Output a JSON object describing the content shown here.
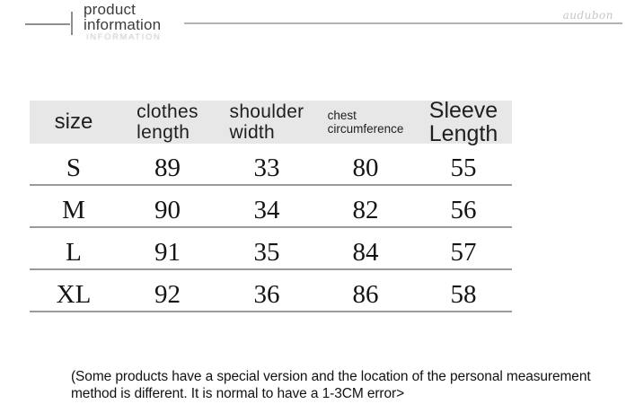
{
  "header": {
    "title_line1": "product",
    "title_line2": "information",
    "title_reflection": "INFORMATION",
    "watermark": "audubon"
  },
  "size_chart": {
    "columns": [
      {
        "line1": "size",
        "line2": ""
      },
      {
        "line1": "clothes",
        "line2": "length"
      },
      {
        "line1": "shoulder",
        "line2": "width"
      },
      {
        "line1": "chest",
        "line2": "circumference"
      },
      {
        "line1": "Sleeve",
        "line2": "Length"
      }
    ],
    "rows": [
      {
        "cells": [
          "S",
          "89",
          "33",
          "80",
          "55"
        ]
      },
      {
        "cells": [
          "M",
          "90",
          "34",
          "82",
          "56"
        ]
      },
      {
        "cells": [
          "L",
          "91",
          "35",
          "84",
          "57"
        ]
      },
      {
        "cells": [
          "XL",
          "92",
          "36",
          "86",
          "58"
        ]
      }
    ]
  },
  "footnote": "(Some products have a special version and the location of the personal measurement method is different. It is normal to have a 1-3CM error>",
  "chart_data": {
    "type": "table",
    "title": "product information",
    "columns": [
      "size",
      "clothes length",
      "shoulder width",
      "chest circumference",
      "Sleeve Length"
    ],
    "rows": [
      [
        "S",
        89,
        33,
        80,
        55
      ],
      [
        "M",
        90,
        34,
        82,
        56
      ],
      [
        "L",
        91,
        35,
        84,
        57
      ],
      [
        "XL",
        92,
        36,
        86,
        58
      ]
    ],
    "note": "(Some products have a special version and the location of the personal measurement method is different. It is normal to have a 1-3CM error>",
    "units": "CM"
  },
  "colors": {
    "header_band": "#e7e7e7",
    "row_divider": "#9b9b9b",
    "text": "#1d1d1d",
    "muted_gray": "#c6c6c6"
  }
}
